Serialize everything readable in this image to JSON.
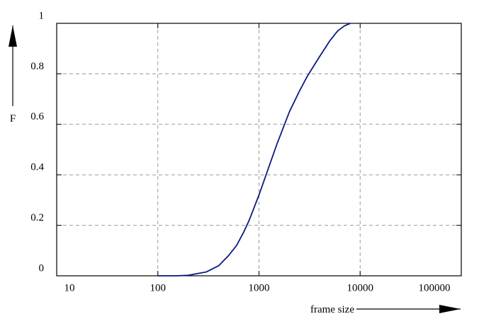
{
  "chart_data": {
    "type": "line",
    "x_label": "frame size",
    "y_label": "F",
    "x": [
      100,
      150,
      200,
      300,
      400,
      500,
      600,
      700,
      800,
      1000,
      1200,
      1500,
      2000,
      2500,
      3000,
      4000,
      5000,
      6000,
      7000,
      8000
    ],
    "series": [
      {
        "color": "#0d1a80",
        "values": [
          0,
          0,
          0.002,
          0.015,
          0.04,
          0.08,
          0.12,
          0.17,
          0.22,
          0.32,
          0.41,
          0.52,
          0.65,
          0.73,
          0.79,
          0.87,
          0.93,
          0.97,
          0.99,
          1.0
        ]
      }
    ],
    "xlim": [
      10,
      100000
    ],
    "xticks": [
      10,
      100,
      1000,
      10000,
      100000
    ],
    "xscale": "log",
    "ylim": [
      0,
      1
    ],
    "yticks": [
      0,
      0.2,
      0.4,
      0.6,
      0.8,
      1
    ],
    "grid": true
  }
}
